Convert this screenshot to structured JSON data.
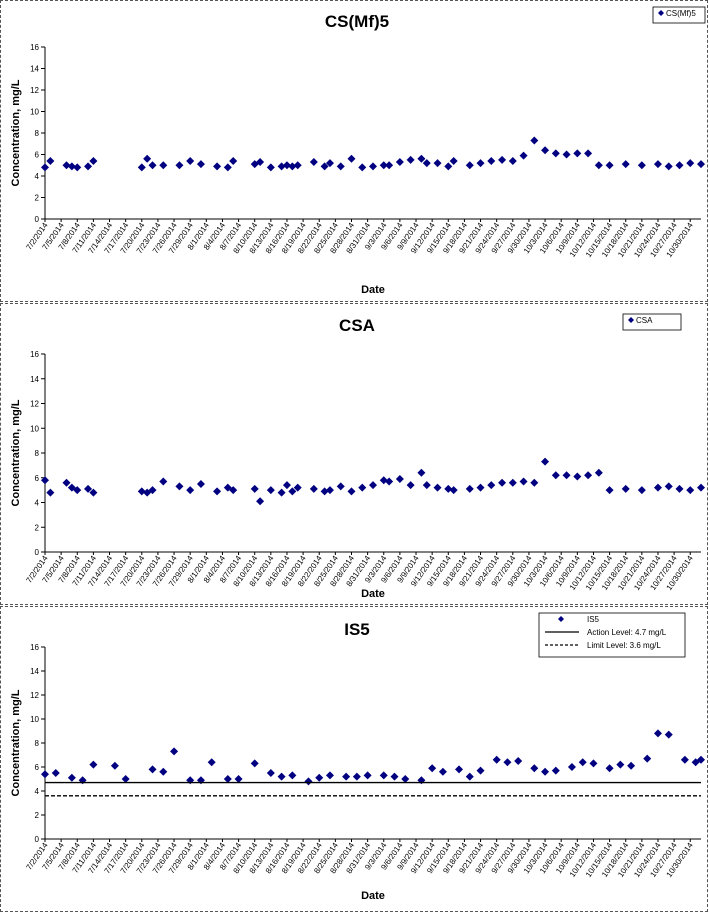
{
  "chart_data": [
    {
      "type": "scatter",
      "title": "CS(Mf)5",
      "xlabel": "Date",
      "ylabel": "Concentration, mg/L",
      "ylim": [
        0,
        16
      ],
      "yticks": [
        0,
        2,
        4,
        6,
        8,
        10,
        12,
        14,
        16
      ],
      "xlim": [
        "7/2/2014",
        "11/1/2014"
      ],
      "grid": false,
      "legend_position": "top-right",
      "series": [
        {
          "name": "CS(Mf)5",
          "color": "#000080",
          "marker": "diamond",
          "x": [
            "7/2/2014",
            "7/3/2014",
            "7/6/2014",
            "7/7/2014",
            "7/8/2014",
            "7/10/2014",
            "7/11/2014",
            "7/20/2014",
            "7/21/2014",
            "7/22/2014",
            "7/24/2014",
            "7/27/2014",
            "7/29/2014",
            "7/31/2014",
            "8/3/2014",
            "8/5/2014",
            "8/6/2014",
            "8/10/2014",
            "8/11/2014",
            "8/13/2014",
            "8/15/2014",
            "8/16/2014",
            "8/17/2014",
            "8/18/2014",
            "8/21/2014",
            "8/23/2014",
            "8/24/2014",
            "8/26/2014",
            "8/28/2014",
            "8/30/2014",
            "9/1/2014",
            "9/3/2014",
            "9/4/2014",
            "9/6/2014",
            "9/8/2014",
            "9/10/2014",
            "9/11/2014",
            "9/13/2014",
            "9/15/2014",
            "9/16/2014",
            "9/19/2014",
            "9/21/2014",
            "9/23/2014",
            "9/25/2014",
            "9/27/2014",
            "9/29/2014",
            "10/1/2014",
            "10/3/2014",
            "10/5/2014",
            "10/7/2014",
            "10/9/2014",
            "10/11/2014",
            "10/13/2014",
            "10/15/2014",
            "10/18/2014",
            "10/21/2014",
            "10/24/2014",
            "10/26/2014",
            "10/28/2014",
            "10/30/2014",
            "11/1/2014"
          ],
          "y": [
            4.8,
            5.4,
            5.0,
            4.9,
            4.8,
            4.9,
            5.4,
            4.8,
            5.6,
            5.0,
            5.0,
            5.0,
            5.4,
            5.1,
            4.9,
            4.8,
            5.4,
            5.1,
            5.3,
            4.8,
            4.9,
            5.0,
            4.9,
            5.0,
            5.3,
            4.9,
            5.2,
            4.9,
            5.6,
            4.8,
            4.9,
            5.0,
            5.0,
            5.3,
            5.5,
            5.6,
            5.2,
            5.2,
            4.9,
            5.4,
            5.0,
            5.2,
            5.4,
            5.5,
            5.4,
            5.9,
            7.3,
            6.4,
            6.1,
            6.0,
            6.1,
            6.1,
            5.0,
            5.0,
            5.1,
            5.0,
            5.1,
            4.9,
            5.0,
            5.2,
            5.1
          ]
        }
      ],
      "x_tick_labels": [
        "7/2/2014",
        "7/5/2014",
        "7/8/2014",
        "7/11/2014",
        "7/14/2014",
        "7/17/2014",
        "7/20/2014",
        "7/23/2014",
        "7/26/2014",
        "7/29/2014",
        "8/1/2014",
        "8/4/2014",
        "8/7/2014",
        "8/10/2014",
        "8/13/2014",
        "8/16/2014",
        "8/19/2014",
        "8/22/2014",
        "8/25/2014",
        "8/28/2014",
        "8/31/2014",
        "9/3/2014",
        "9/6/2014",
        "9/9/2014",
        "9/12/2014",
        "9/15/2014",
        "9/18/2014",
        "9/21/2014",
        "9/24/2014",
        "9/27/2014",
        "9/30/2014",
        "10/3/2014",
        "10/6/2014",
        "10/9/2014",
        "10/12/2014",
        "10/15/2014",
        "10/18/2014",
        "10/21/2014",
        "10/24/2014",
        "10/27/2014",
        "10/30/2014"
      ]
    },
    {
      "type": "scatter",
      "title": "CSA",
      "xlabel": "Date",
      "ylabel": "Concentration, mg/L",
      "ylim": [
        0,
        16
      ],
      "yticks": [
        0,
        2,
        4,
        6,
        8,
        10,
        12,
        14,
        16
      ],
      "xlim": [
        "7/2/2014",
        "11/1/2014"
      ],
      "grid": false,
      "legend_position": "top-right",
      "series": [
        {
          "name": "CSA",
          "color": "#000080",
          "marker": "diamond",
          "x": [
            "7/2/2014",
            "7/3/2014",
            "7/6/2014",
            "7/7/2014",
            "7/8/2014",
            "7/10/2014",
            "7/11/2014",
            "7/20/2014",
            "7/21/2014",
            "7/22/2014",
            "7/24/2014",
            "7/27/2014",
            "7/29/2014",
            "7/31/2014",
            "8/3/2014",
            "8/5/2014",
            "8/6/2014",
            "8/10/2014",
            "8/11/2014",
            "8/13/2014",
            "8/15/2014",
            "8/16/2014",
            "8/17/2014",
            "8/18/2014",
            "8/21/2014",
            "8/23/2014",
            "8/24/2014",
            "8/26/2014",
            "8/28/2014",
            "8/30/2014",
            "9/1/2014",
            "9/3/2014",
            "9/4/2014",
            "9/6/2014",
            "9/8/2014",
            "9/10/2014",
            "9/11/2014",
            "9/13/2014",
            "9/15/2014",
            "9/16/2014",
            "9/19/2014",
            "9/21/2014",
            "9/23/2014",
            "9/25/2014",
            "9/27/2014",
            "9/29/2014",
            "10/1/2014",
            "10/3/2014",
            "10/5/2014",
            "10/7/2014",
            "10/9/2014",
            "10/11/2014",
            "10/13/2014",
            "10/15/2014",
            "10/18/2014",
            "10/21/2014",
            "10/24/2014",
            "10/26/2014",
            "10/28/2014",
            "10/30/2014",
            "11/1/2014"
          ],
          "y": [
            5.8,
            4.8,
            5.6,
            5.2,
            5.0,
            5.1,
            4.8,
            4.9,
            4.8,
            5.0,
            5.7,
            5.3,
            5.0,
            5.5,
            4.9,
            5.2,
            5.0,
            5.1,
            4.1,
            5.0,
            4.8,
            5.4,
            4.9,
            5.2,
            5.1,
            4.9,
            5.0,
            5.3,
            4.9,
            5.2,
            5.4,
            5.8,
            5.7,
            5.9,
            5.4,
            6.4,
            5.4,
            5.2,
            5.1,
            5.0,
            5.1,
            5.2,
            5.4,
            5.6,
            5.6,
            5.7,
            5.6,
            7.3,
            6.2,
            6.2,
            6.1,
            6.2,
            6.4,
            5.0,
            5.1,
            5.0,
            5.2,
            5.3,
            5.1,
            5.0,
            5.2
          ]
        }
      ],
      "x_tick_labels": [
        "7/2/2014",
        "7/5/2014",
        "7/8/2014",
        "7/11/2014",
        "7/14/2014",
        "7/17/2014",
        "7/20/2014",
        "7/23/2014",
        "7/26/2014",
        "7/29/2014",
        "8/1/2014",
        "8/4/2014",
        "8/7/2014",
        "8/10/2014",
        "8/13/2014",
        "8/16/2014",
        "8/19/2014",
        "8/22/2014",
        "8/25/2014",
        "8/28/2014",
        "8/31/2014",
        "9/3/2014",
        "9/6/2014",
        "9/9/2014",
        "9/12/2014",
        "9/15/2014",
        "9/18/2014",
        "9/21/2014",
        "9/24/2014",
        "9/27/2014",
        "9/30/2014",
        "10/3/2014",
        "10/6/2014",
        "10/9/2014",
        "10/12/2014",
        "10/15/2014",
        "10/18/2014",
        "10/21/2014",
        "10/24/2014",
        "10/27/2014",
        "10/30/2014"
      ]
    },
    {
      "type": "scatter",
      "title": "IS5",
      "xlabel": "Date",
      "ylabel": "Concentration, mg/L",
      "ylim": [
        0,
        16
      ],
      "yticks": [
        0,
        2,
        4,
        6,
        8,
        10,
        12,
        14,
        16
      ],
      "xlim": [
        "7/2/2014",
        "11/1/2014"
      ],
      "grid": false,
      "legend_position": "top-right",
      "series": [
        {
          "name": "IS5",
          "color": "#000080",
          "marker": "diamond",
          "x": [
            "7/2/2014",
            "7/4/2014",
            "7/7/2014",
            "7/9/2014",
            "7/11/2014",
            "7/15/2014",
            "7/17/2014",
            "7/22/2014",
            "7/24/2014",
            "7/26/2014",
            "7/29/2014",
            "7/31/2014",
            "8/2/2014",
            "8/5/2014",
            "8/7/2014",
            "8/10/2014",
            "8/13/2014",
            "8/15/2014",
            "8/17/2014",
            "8/20/2014",
            "8/22/2014",
            "8/24/2014",
            "8/27/2014",
            "8/29/2014",
            "8/31/2014",
            "9/3/2014",
            "9/5/2014",
            "9/7/2014",
            "9/10/2014",
            "9/12/2014",
            "9/14/2014",
            "9/17/2014",
            "9/19/2014",
            "9/21/2014",
            "9/24/2014",
            "9/26/2014",
            "9/28/2014",
            "10/1/2014",
            "10/3/2014",
            "10/5/2014",
            "10/8/2014",
            "10/10/2014",
            "10/12/2014",
            "10/15/2014",
            "10/17/2014",
            "10/19/2014",
            "10/22/2014",
            "10/24/2014",
            "10/26/2014",
            "10/29/2014",
            "10/31/2014",
            "11/1/2014"
          ],
          "y": [
            5.4,
            5.5,
            5.1,
            4.9,
            6.2,
            6.1,
            5.0,
            5.8,
            5.6,
            7.3,
            4.9,
            4.9,
            6.4,
            5.0,
            5.0,
            6.3,
            5.5,
            5.2,
            5.3,
            4.8,
            5.1,
            5.3,
            5.2,
            5.2,
            5.3,
            5.3,
            5.2,
            5.0,
            4.9,
            5.9,
            5.6,
            5.8,
            5.2,
            5.7,
            6.6,
            6.4,
            6.5,
            5.9,
            5.6,
            5.7,
            6.0,
            6.4,
            6.3,
            5.9,
            6.2,
            6.1,
            6.7,
            8.8,
            8.7,
            6.6,
            6.4,
            6.6
          ]
        },
        {
          "name": "Action Level: 4.7 mg/L",
          "type": "line",
          "style": "solid",
          "color": "#000000",
          "y_constant": 4.7
        },
        {
          "name": "Limit Level: 3.6 mg/L",
          "type": "line",
          "style": "dashed",
          "color": "#000000",
          "y_constant": 3.6
        }
      ],
      "x_tick_labels": [
        "7/2/2014",
        "7/5/2014",
        "7/8/2014",
        "7/11/2014",
        "7/14/2014",
        "7/17/2014",
        "7/20/2014",
        "7/23/2014",
        "7/26/2014",
        "7/29/2014",
        "8/1/2014",
        "8/4/2014",
        "8/7/2014",
        "8/10/2014",
        "8/13/2014",
        "8/16/2014",
        "8/19/2014",
        "8/22/2014",
        "8/25/2014",
        "8/28/2014",
        "8/31/2014",
        "9/3/2014",
        "9/6/2014",
        "9/9/2014",
        "9/12/2014",
        "9/15/2014",
        "9/18/2014",
        "9/21/2014",
        "9/24/2014",
        "9/27/2014",
        "9/30/2014",
        "10/3/2014",
        "10/6/2014",
        "10/9/2014",
        "10/12/2014",
        "10/15/2014",
        "10/18/2014",
        "10/21/2014",
        "10/24/2014",
        "10/27/2014",
        "10/30/2014"
      ]
    }
  ]
}
